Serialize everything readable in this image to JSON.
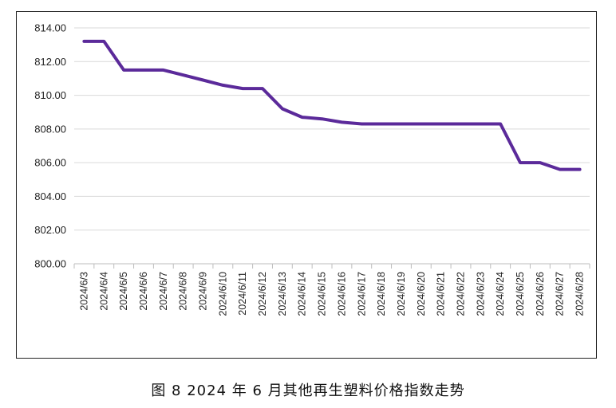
{
  "caption": "图 8  2024 年 6 月其他再生塑料价格指数走势",
  "chart_data": {
    "type": "line",
    "title": "",
    "xlabel": "",
    "ylabel": "",
    "ylim": [
      800,
      814
    ],
    "yticks": [
      "800.00",
      "802.00",
      "804.00",
      "806.00",
      "808.00",
      "810.00",
      "812.00",
      "814.00"
    ],
    "grid": "horizontal",
    "legend": "none",
    "categories": [
      "2024/6/3",
      "2024/6/4",
      "2024/6/5",
      "2024/6/6",
      "2024/6/7",
      "2024/6/8",
      "2024/6/9",
      "2024/6/10",
      "2024/6/11",
      "2024/6/12",
      "2024/6/13",
      "2024/6/14",
      "2024/6/15",
      "2024/6/16",
      "2024/6/17",
      "2024/6/18",
      "2024/6/19",
      "2024/6/20",
      "2024/6/21",
      "2024/6/22",
      "2024/6/23",
      "2024/6/24",
      "2024/6/25",
      "2024/6/26",
      "2024/6/27",
      "2024/6/28"
    ],
    "series": [
      {
        "color": "#5b2a9a",
        "values": [
          813.2,
          813.2,
          811.5,
          811.5,
          811.5,
          811.2,
          810.9,
          810.6,
          810.4,
          810.4,
          809.2,
          808.7,
          808.6,
          808.4,
          808.3,
          808.3,
          808.3,
          808.3,
          808.3,
          808.3,
          808.3,
          808.3,
          806.0,
          806.0,
          805.6,
          805.6
        ]
      }
    ]
  }
}
